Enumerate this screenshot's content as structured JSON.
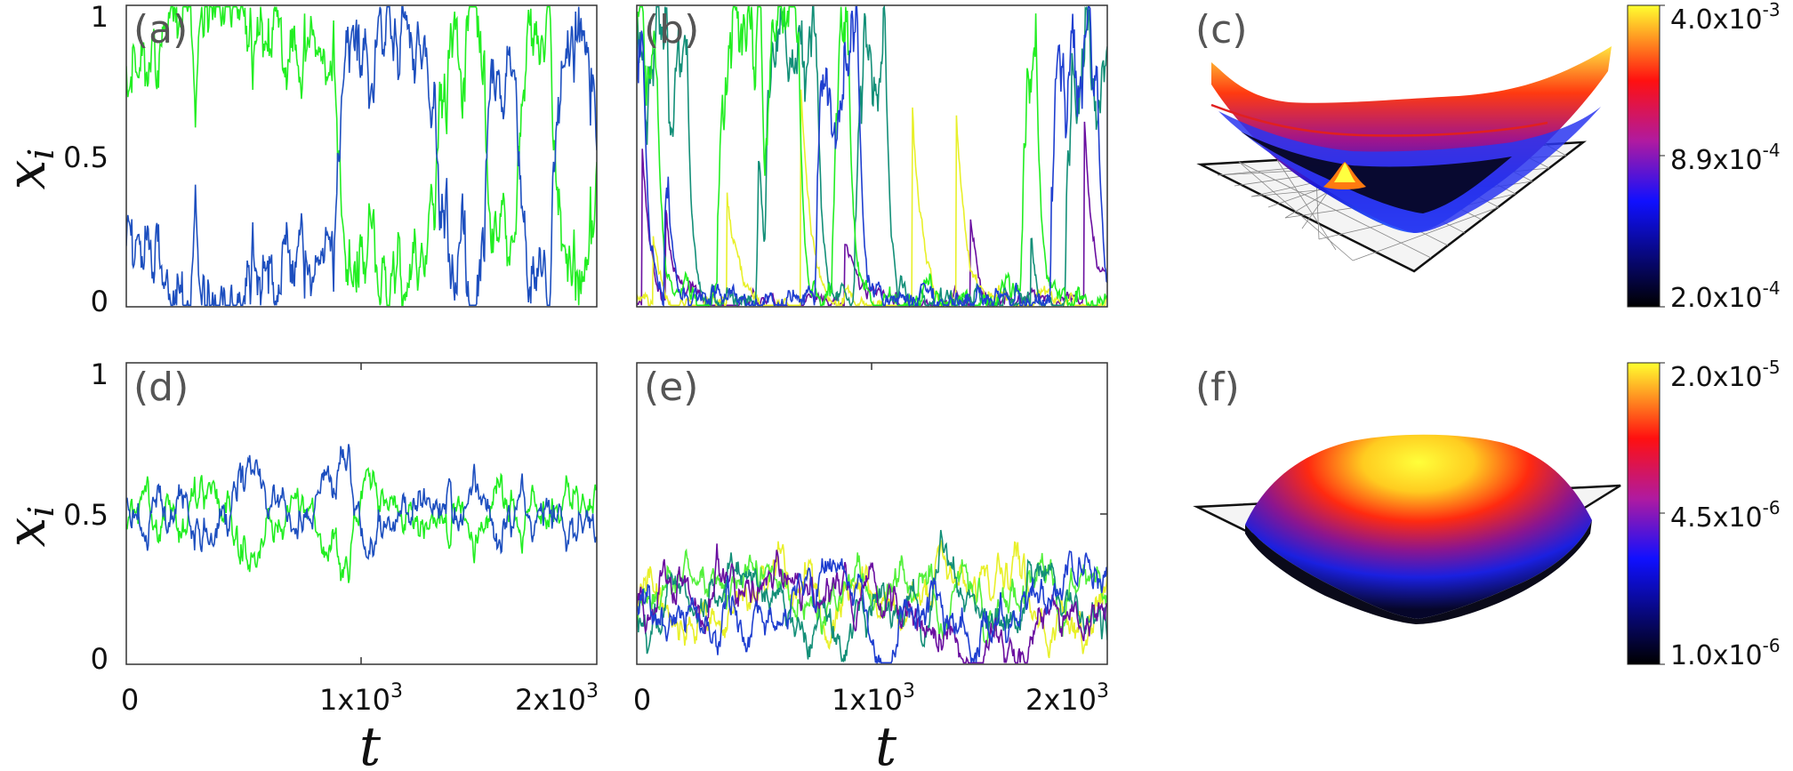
{
  "colors": {
    "green": "#22ee22",
    "blue": "#1d4fbf",
    "darkblue": "#1f3fd0",
    "teal": "#138f78",
    "yellow": "#e8f02a",
    "purple": "#6a0fa0",
    "lime": "#52f03a"
  },
  "chart_data": [
    {
      "panel": "(a)",
      "type": "line",
      "xlim": [
        0,
        2000
      ],
      "ylim": [
        0,
        1
      ],
      "yticks": [
        "0",
        "0.5",
        "1"
      ],
      "ylabel": "x_i",
      "series": [
        {
          "color": "green",
          "kind": "bistable",
          "seed": 11
        },
        {
          "color": "blue",
          "kind": "complement"
        }
      ]
    },
    {
      "panel": "(b)",
      "type": "line",
      "xlim": [
        0,
        2000
      ],
      "ylim": [
        0,
        1
      ],
      "series": [
        {
          "color": "purple",
          "kind": "spiky",
          "seed": 21
        },
        {
          "color": "yellow",
          "kind": "spiky",
          "seed": 22
        },
        {
          "color": "teal",
          "kind": "bistable4",
          "seed": 23
        },
        {
          "color": "green",
          "kind": "bistable4",
          "seed": 24
        },
        {
          "color": "darkblue",
          "kind": "bistable4",
          "seed": 25
        }
      ]
    },
    {
      "panel": "(c)",
      "type": "surface",
      "colorbar": {
        "max": "4.0x10",
        "max_exp": "-3",
        "mid": "8.9x10",
        "mid_exp": "-4",
        "min": "2.0x10",
        "min_exp": "-4"
      }
    },
    {
      "panel": "(d)",
      "type": "line",
      "xlim": [
        0,
        2000
      ],
      "ylim": [
        0,
        1
      ],
      "xticks": [
        {
          "base": "0",
          "exp": ""
        },
        {
          "base": "1x10",
          "exp": "3"
        },
        {
          "base": "2x10",
          "exp": "3"
        }
      ],
      "yticks": [
        "0",
        "0.5",
        "1"
      ],
      "ylabel": "x_i",
      "xlabel": "t",
      "series": [
        {
          "color": "green",
          "kind": "centered",
          "seed": 31
        },
        {
          "color": "blue",
          "kind": "complement"
        }
      ]
    },
    {
      "panel": "(e)",
      "type": "line",
      "xlim": [
        0,
        2000
      ],
      "ylim": [
        0,
        1
      ],
      "xticks": [
        {
          "base": "0",
          "exp": ""
        },
        {
          "base": "1x10",
          "exp": "3"
        },
        {
          "base": "2x10",
          "exp": "3"
        }
      ],
      "xlabel": "t",
      "series": [
        {
          "color": "yellow",
          "kind": "low",
          "seed": 41
        },
        {
          "color": "lime",
          "kind": "low",
          "seed": 42
        },
        {
          "color": "teal",
          "kind": "low",
          "seed": 43
        },
        {
          "color": "purple",
          "kind": "low",
          "seed": 44
        },
        {
          "color": "darkblue",
          "kind": "low",
          "seed": 45
        }
      ]
    },
    {
      "panel": "(f)",
      "type": "surface",
      "colorbar": {
        "max": "2.0x10",
        "max_exp": "-5",
        "mid": "4.5x10",
        "mid_exp": "-6",
        "min": "1.0x10",
        "min_exp": "-6"
      }
    }
  ]
}
